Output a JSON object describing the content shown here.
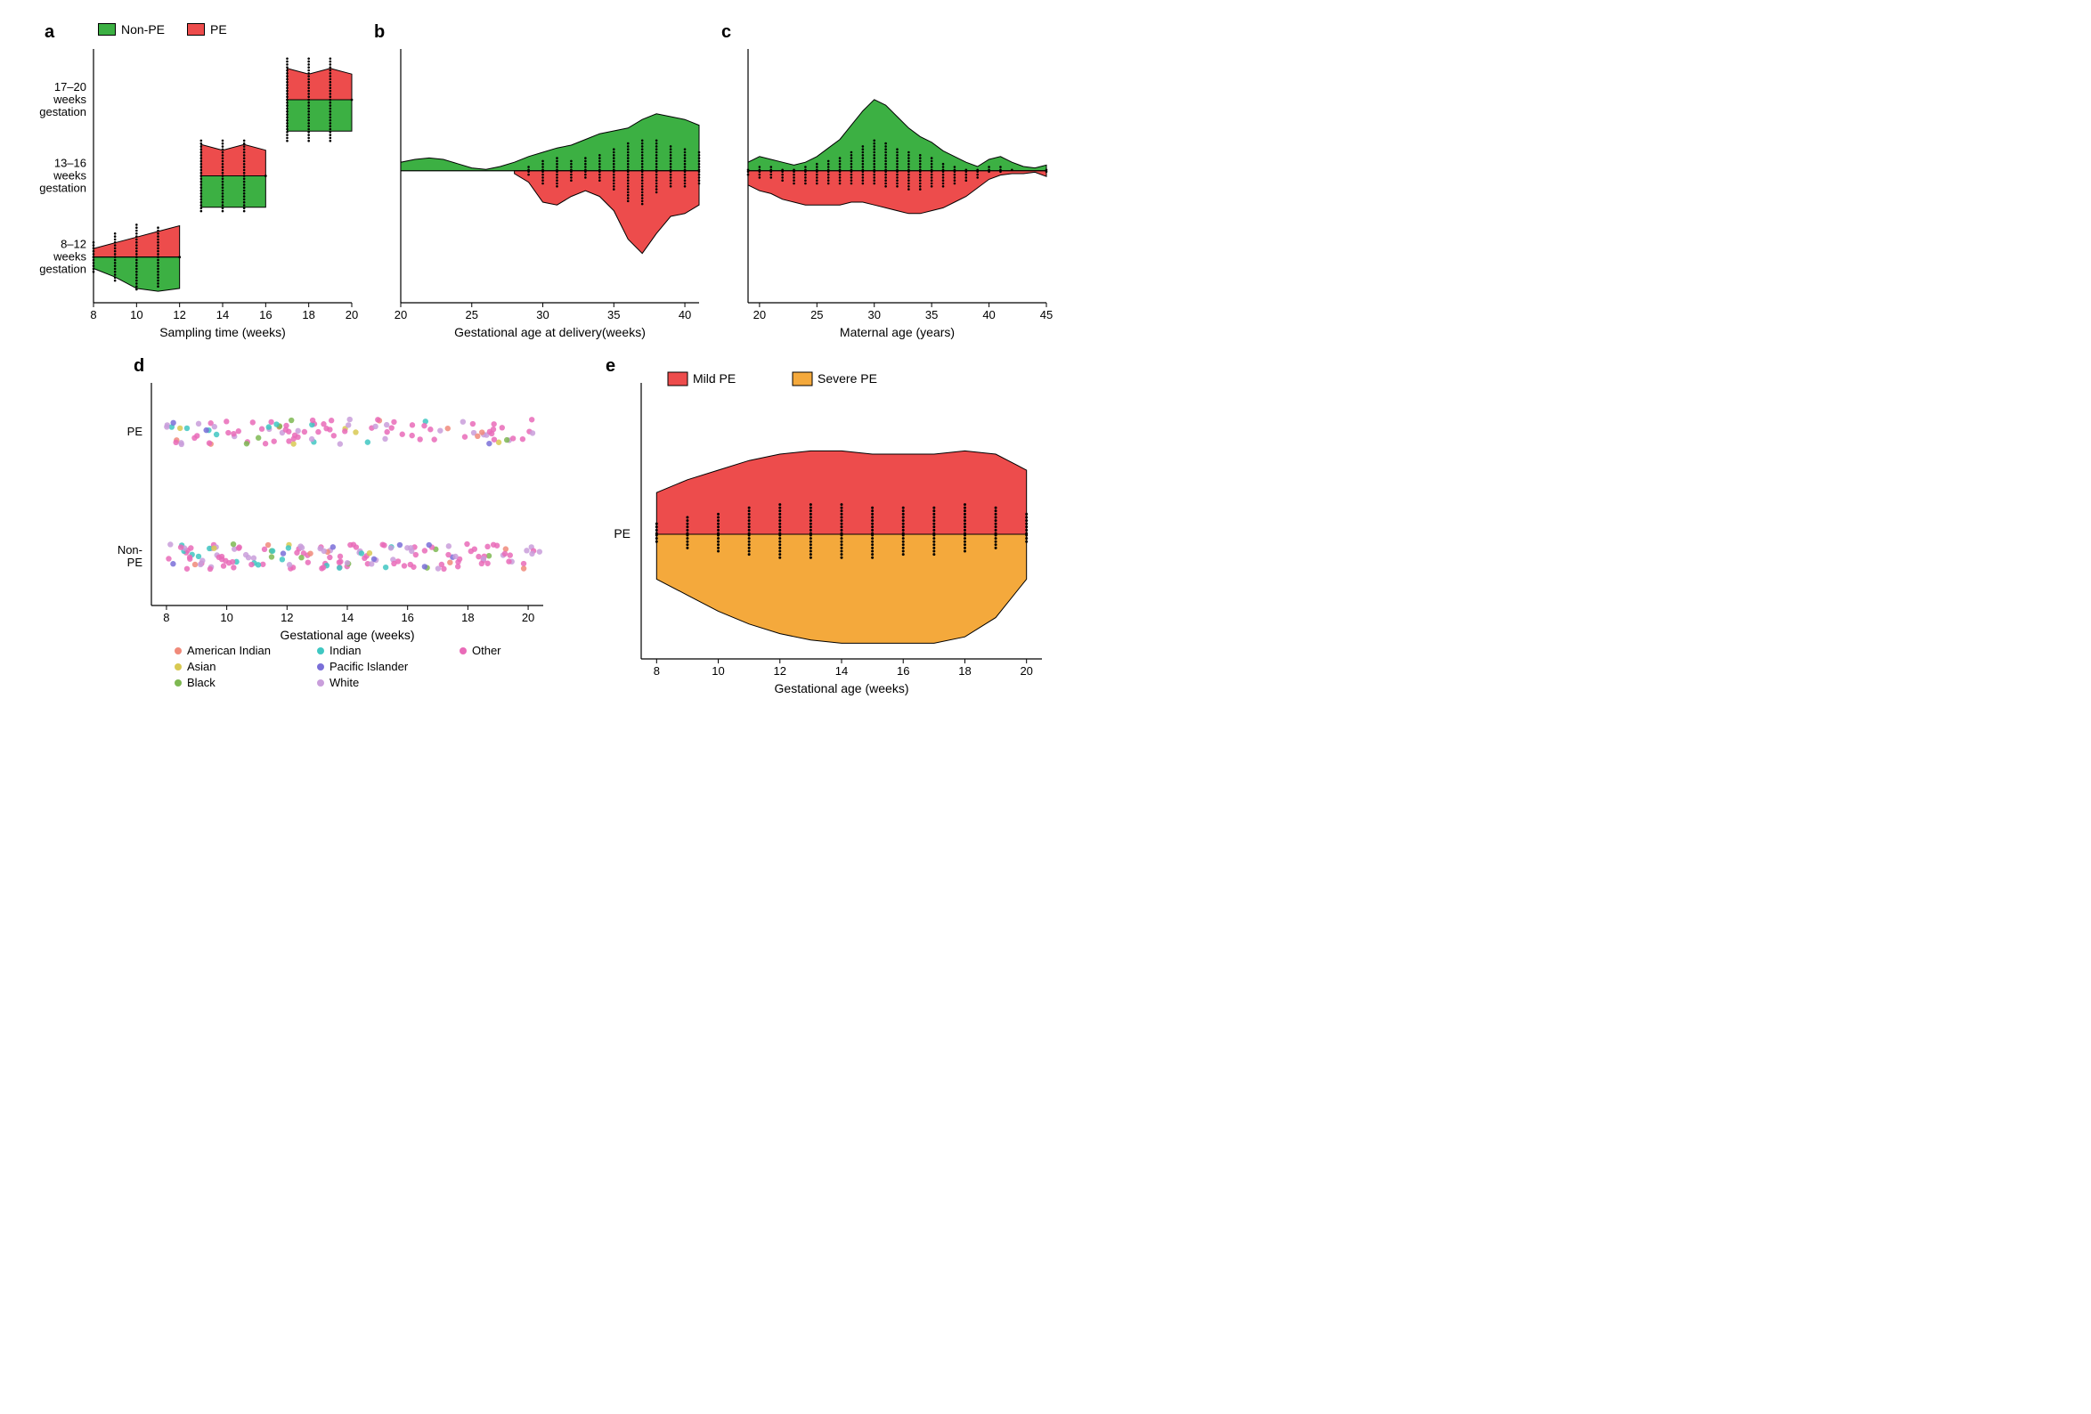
{
  "colors": {
    "non_pe": "#3cb043",
    "pe": "#ed4c4c",
    "mild_pe": "#ed4c4c",
    "severe_pe": "#f4a93c",
    "stroke": "#000000",
    "background": "#ffffff",
    "dot_stroke": "#000000",
    "ethnicity": {
      "american_indian": "#f08a7a",
      "asian": "#d8c952",
      "black": "#7eb852",
      "indian": "#3fc7c2",
      "pacific_islander": "#7a6fd8",
      "white": "#c99edb",
      "other": "#e96bb8"
    }
  },
  "typography": {
    "panel_label_fontsize": 20,
    "panel_label_weight": "bold",
    "axis_label_fontsize": 14,
    "tick_fontsize": 13,
    "legend_fontsize": 14
  },
  "legend_top": {
    "items": [
      {
        "label": "Non-PE",
        "color_key": "non_pe"
      },
      {
        "label": "PE",
        "color_key": "pe"
      }
    ]
  },
  "panel_a": {
    "label": "a",
    "xlabel": "Sampling time (weeks)",
    "xticks": [
      8,
      10,
      12,
      14,
      16,
      18,
      20
    ],
    "ylabels": [
      "17–20\nweeks\ngestation",
      "13–16\nweeks\ngestation",
      "8–12\nweeks\ngestation"
    ],
    "type": "split-violin",
    "violins": [
      {
        "y_center": 0.82,
        "x_range": [
          8,
          12
        ],
        "top_color": "pe",
        "bottom_color": "non_pe",
        "top_profile": [
          6,
          10,
          14,
          18,
          22
        ],
        "bottom_profile": [
          8,
          14,
          22,
          24,
          22
        ],
        "dot_cols": [
          8,
          9,
          10,
          11,
          12
        ],
        "dot_heights": [
          6,
          9,
          12,
          11,
          1
        ]
      },
      {
        "y_center": 0.5,
        "x_range": [
          13,
          16
        ],
        "top_color": "pe",
        "bottom_color": "non_pe",
        "top_profile": [
          22,
          18,
          22,
          18
        ],
        "bottom_profile": [
          22,
          22,
          22,
          22
        ],
        "dot_cols": [
          13,
          14,
          15,
          16
        ],
        "dot_heights": [
          13,
          13,
          13,
          1
        ]
      },
      {
        "y_center": 0.2,
        "x_range": [
          17,
          20
        ],
        "top_color": "pe",
        "bottom_color": "non_pe",
        "top_profile": [
          22,
          18,
          22,
          18
        ],
        "bottom_profile": [
          22,
          22,
          22,
          22
        ],
        "dot_cols": [
          17,
          18,
          19,
          20
        ],
        "dot_heights": [
          15,
          15,
          15,
          1
        ]
      }
    ]
  },
  "panel_b": {
    "label": "b",
    "xlabel": "Gestational age at delivery(weeks)",
    "xticks": [
      20,
      25,
      30,
      35,
      40
    ],
    "type": "split-density",
    "y_center": 0.48,
    "top_color": "non_pe",
    "bottom_color": "pe",
    "top_profile_x": [
      20,
      21,
      22,
      23,
      24,
      25,
      26,
      27,
      28,
      29,
      30,
      31,
      32,
      33,
      34,
      35,
      36,
      37,
      38,
      39,
      40,
      41
    ],
    "top_profile_y": [
      6,
      8,
      9,
      8,
      5,
      2,
      1,
      3,
      6,
      10,
      13,
      16,
      18,
      22,
      26,
      28,
      30,
      36,
      40,
      38,
      36,
      32
    ],
    "bot_profile_x": [
      28,
      29,
      30,
      31,
      32,
      33,
      34,
      35,
      36,
      37,
      38,
      39,
      40,
      41
    ],
    "bot_profile_y": [
      2,
      8,
      22,
      24,
      18,
      14,
      18,
      28,
      48,
      58,
      44,
      32,
      30,
      24
    ],
    "dot_cols": [
      29,
      30,
      31,
      32,
      33,
      34,
      35,
      36,
      37,
      38,
      39,
      40,
      41
    ],
    "dot_heights_top": [
      2,
      4,
      5,
      4,
      5,
      6,
      8,
      10,
      11,
      11,
      9,
      8,
      7
    ],
    "dot_heights_bot": [
      2,
      5,
      6,
      4,
      3,
      4,
      7,
      11,
      12,
      8,
      6,
      6,
      5
    ]
  },
  "panel_c": {
    "label": "c",
    "xlabel": "Maternal age (years)",
    "xticks": [
      20,
      25,
      30,
      35,
      40,
      45
    ],
    "type": "split-density",
    "y_center": 0.48,
    "top_color": "non_pe",
    "bottom_color": "pe",
    "top_profile_x": [
      19,
      20,
      21,
      22,
      23,
      24,
      25,
      26,
      27,
      28,
      29,
      30,
      31,
      32,
      33,
      34,
      35,
      36,
      37,
      38,
      39,
      40,
      41,
      42,
      43,
      44,
      45
    ],
    "top_profile_y": [
      6,
      10,
      8,
      6,
      4,
      6,
      10,
      16,
      22,
      32,
      42,
      50,
      46,
      38,
      30,
      24,
      20,
      14,
      10,
      6,
      3,
      8,
      10,
      6,
      3,
      2,
      4
    ],
    "bot_profile_y": [
      10,
      14,
      16,
      20,
      22,
      24,
      24,
      24,
      24,
      22,
      22,
      24,
      26,
      28,
      30,
      30,
      28,
      26,
      22,
      18,
      12,
      6,
      3,
      2,
      2,
      1,
      4
    ],
    "dot_cols": [
      19,
      20,
      21,
      22,
      23,
      24,
      25,
      26,
      27,
      28,
      29,
      30,
      31,
      32,
      33,
      34,
      35,
      36,
      37,
      38,
      39,
      40,
      41,
      42,
      43,
      44,
      45
    ],
    "dot_heights_top": [
      1,
      2,
      2,
      1,
      1,
      2,
      3,
      4,
      5,
      7,
      9,
      11,
      10,
      8,
      7,
      6,
      5,
      3,
      2,
      1,
      1,
      2,
      2,
      1,
      0,
      0,
      1
    ],
    "dot_heights_bot": [
      2,
      3,
      3,
      4,
      5,
      5,
      5,
      5,
      5,
      5,
      5,
      5,
      6,
      6,
      7,
      7,
      6,
      6,
      5,
      4,
      3,
      1,
      1,
      0,
      0,
      0,
      1
    ]
  },
  "panel_d": {
    "label": "d",
    "xlabel": "Gestational age (weeks)",
    "xticks": [
      8,
      10,
      12,
      14,
      16,
      18,
      20
    ],
    "ylabels": [
      "PE",
      "Non-\nPE"
    ],
    "type": "jitter-strip",
    "legend": [
      {
        "label": "American Indian",
        "key": "american_indian"
      },
      {
        "label": "Asian",
        "key": "asian"
      },
      {
        "label": "Black",
        "key": "black"
      },
      {
        "label": "Indian",
        "key": "indian"
      },
      {
        "label": "Pacific Islander",
        "key": "pacific_islander"
      },
      {
        "label": "White",
        "key": "white"
      },
      {
        "label": "Other",
        "key": "other"
      }
    ],
    "dot_radius": 3.2,
    "strip_jitter": 0.12
  },
  "panel_e": {
    "label": "e",
    "xlabel": "Gestational age (weeks)",
    "xticks": [
      8,
      10,
      12,
      14,
      16,
      18,
      20
    ],
    "ylabel": "PE",
    "type": "split-violin",
    "y_center": 0.5,
    "top_color": "mild_pe",
    "bottom_color": "severe_pe",
    "top_profile_x": [
      8,
      9,
      10,
      11,
      12,
      13,
      14,
      15,
      16,
      17,
      18,
      19,
      20
    ],
    "top_profile_y": [
      26,
      34,
      40,
      46,
      50,
      52,
      52,
      50,
      50,
      50,
      52,
      50,
      40
    ],
    "bot_profile_y": [
      28,
      38,
      48,
      56,
      62,
      66,
      68,
      68,
      68,
      68,
      64,
      52,
      28
    ],
    "dot_cols": [
      8,
      9,
      10,
      11,
      12,
      13,
      14,
      15,
      16,
      17,
      18,
      19,
      20
    ],
    "dot_heights_top": [
      4,
      6,
      7,
      9,
      10,
      10,
      10,
      9,
      9,
      9,
      10,
      9,
      7
    ],
    "dot_heights_bot": [
      3,
      5,
      6,
      7,
      8,
      8,
      8,
      8,
      7,
      7,
      6,
      5,
      3
    ],
    "legend": [
      {
        "label": "Mild PE",
        "color_key": "mild_pe"
      },
      {
        "label": "Severe PE",
        "color_key": "severe_pe"
      }
    ]
  }
}
